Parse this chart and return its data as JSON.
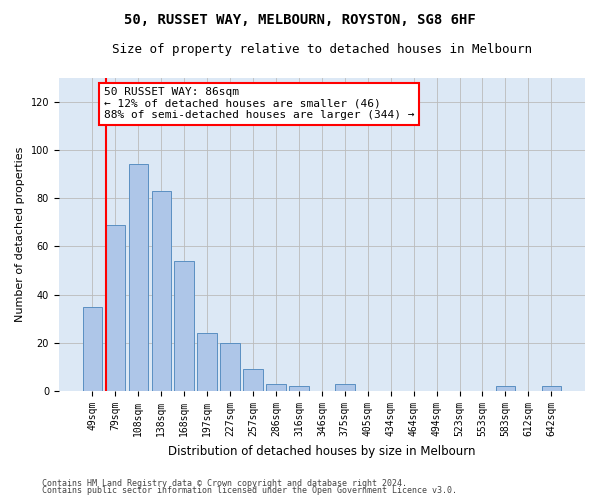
{
  "title": "50, RUSSET WAY, MELBOURN, ROYSTON, SG8 6HF",
  "subtitle": "Size of property relative to detached houses in Melbourn",
  "xlabel": "Distribution of detached houses by size in Melbourn",
  "ylabel": "Number of detached properties",
  "bar_color": "#aec6e8",
  "bar_edge_color": "#5a8fc2",
  "background_color": "#dce8f5",
  "categories": [
    "49sqm",
    "79sqm",
    "108sqm",
    "138sqm",
    "168sqm",
    "197sqm",
    "227sqm",
    "257sqm",
    "286sqm",
    "316sqm",
    "346sqm",
    "375sqm",
    "405sqm",
    "434sqm",
    "464sqm",
    "494sqm",
    "523sqm",
    "553sqm",
    "583sqm",
    "612sqm",
    "642sqm"
  ],
  "values": [
    35,
    69,
    94,
    83,
    54,
    24,
    20,
    9,
    3,
    2,
    0,
    3,
    0,
    0,
    0,
    0,
    0,
    0,
    2,
    0,
    2
  ],
  "ylim": [
    0,
    130
  ],
  "yticks": [
    0,
    20,
    40,
    60,
    80,
    100,
    120
  ],
  "annotation_text": "50 RUSSET WAY: 86sqm\n← 12% of detached houses are smaller (46)\n88% of semi-detached houses are larger (344) →",
  "footnote1": "Contains HM Land Registry data © Crown copyright and database right 2024.",
  "footnote2": "Contains public sector information licensed under the Open Government Licence v3.0.",
  "grid_color": "#bbbbbb",
  "title_fontsize": 10,
  "subtitle_fontsize": 9,
  "annotation_fontsize": 8,
  "tick_fontsize": 7,
  "ylabel_fontsize": 8,
  "xlabel_fontsize": 8.5,
  "footnote_fontsize": 6
}
